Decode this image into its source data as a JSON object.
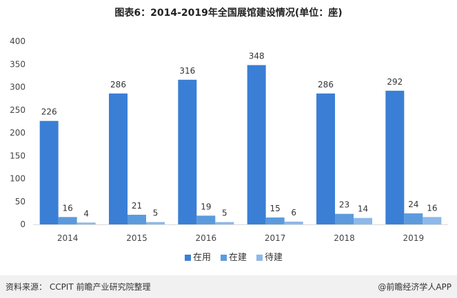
{
  "title": "图表6：2014-2019年全国展馆建设情况(单位：座)",
  "source": "资料来源： CCPIT 前瞻产业研究院整理",
  "brand": "@前瞻经济学人APP",
  "chart_data": {
    "type": "bar",
    "categories": [
      "2014",
      "2015",
      "2016",
      "2017",
      "2018",
      "2019"
    ],
    "series": [
      {
        "name": "在用",
        "values": [
          226,
          286,
          316,
          348,
          286,
          292
        ],
        "color": "#3a7fd5"
      },
      {
        "name": "在建",
        "values": [
          16,
          21,
          19,
          15,
          23,
          24
        ],
        "color": "#5b9bdd"
      },
      {
        "name": "待建",
        "values": [
          4,
          5,
          5,
          6,
          14,
          16
        ],
        "color": "#8db8ea"
      }
    ],
    "ylim": [
      0,
      400
    ],
    "yticks": [
      0,
      50,
      100,
      150,
      200,
      250,
      300,
      350,
      400
    ],
    "grid": false,
    "legend": "bottom"
  }
}
